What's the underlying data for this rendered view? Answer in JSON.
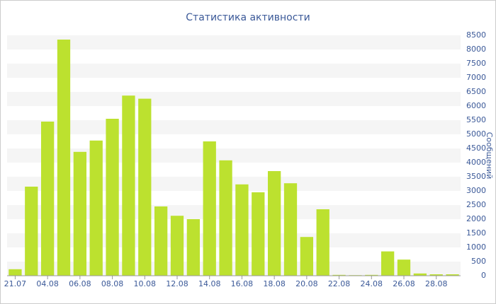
{
  "chart_data": {
    "type": "bar",
    "title": "Статистика активности",
    "y_label": "Сообщений",
    "categories": [
      "21.07",
      null,
      "04.08",
      null,
      "06.08",
      null,
      "08.08",
      null,
      "10.08",
      null,
      "12.08",
      null,
      "14.08",
      null,
      "16.08",
      null,
      "18.08",
      null,
      "20.08",
      null,
      "22.08",
      null,
      "24.08",
      null,
      "26.08",
      null,
      "28.08",
      null
    ],
    "values": [
      230,
      3150,
      5450,
      8350,
      4380,
      4780,
      5550,
      6370,
      6260,
      2450,
      2120,
      2000,
      4750,
      4080,
      3230,
      2950,
      3700,
      3270,
      1370,
      2350,
      30,
      20,
      30,
      860,
      570,
      80,
      50,
      50
    ],
    "color": "#bce12f",
    "ylim": [
      0,
      8500
    ],
    "yticks": [
      0,
      500,
      1000,
      1500,
      2000,
      2500,
      3000,
      3500,
      4000,
      4500,
      5000,
      5500,
      6000,
      6500,
      7000,
      7500,
      8000,
      8500
    ],
    "y_axis_side": "right",
    "grid": true
  }
}
